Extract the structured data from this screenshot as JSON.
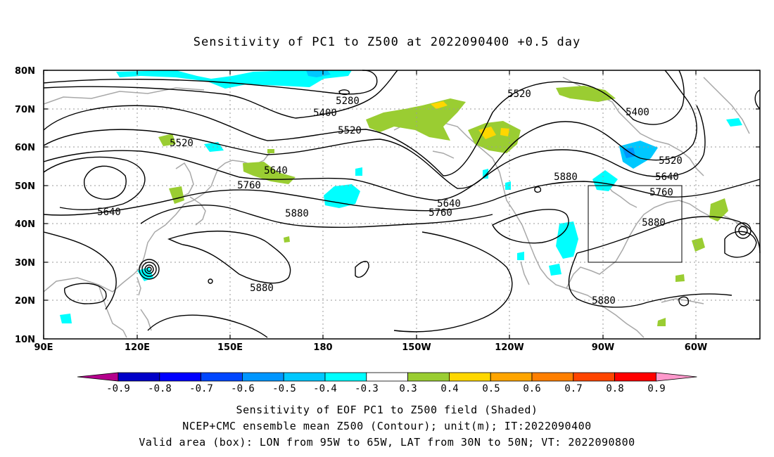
{
  "title": "Sensitivity of PC1 to Z500 at 2022090400 +0.5 day",
  "axes": {
    "lon_ticks": [
      "90E",
      "120E",
      "150E",
      "180",
      "150W",
      "120W",
      "90W",
      "60W"
    ],
    "lat_ticks": [
      "80N",
      "70N",
      "60N",
      "50N",
      "40N",
      "30N",
      "20N",
      "10N"
    ],
    "lon_range": [
      90,
      315
    ],
    "lat_range": [
      10,
      80
    ],
    "grid": true
  },
  "contour_labels": [
    "5280",
    "5400",
    "5520",
    "5520",
    "5520",
    "5640",
    "5640",
    "5640",
    "5760",
    "5760",
    "5760",
    "5880",
    "5880",
    "5880",
    "5880",
    "5880",
    "5640",
    "5400",
    "5520"
  ],
  "valid_box": {
    "lon": [
      265,
      295
    ],
    "lat": [
      30,
      50
    ]
  },
  "colorbar": {
    "labels": [
      "-0.9",
      "-0.8",
      "-0.7",
      "-0.6",
      "-0.5",
      "-0.4",
      "-0.3",
      "0.3",
      "0.4",
      "0.5",
      "0.6",
      "0.7",
      "0.8",
      "0.9"
    ],
    "colors": [
      "#b4008c",
      "#0000c8",
      "#0000ff",
      "#0046ff",
      "#0096ff",
      "#00c8ff",
      "#00ffff",
      "#ffffff",
      "#9acd32",
      "#ffd700",
      "#ffa500",
      "#ff7f00",
      "#ff4500",
      "#ff0000",
      "#ff99cc"
    ]
  },
  "caption": {
    "line1": "Sensitivity of EOF PC1 to Z500 field (Shaded)",
    "line2": "NCEP+CMC ensemble mean Z500 (Contour); unit(m); IT:2022090400",
    "line3": "Valid area (box): LON from 95W to 65W, LAT from 30N to 50N; VT: 2022090800"
  }
}
